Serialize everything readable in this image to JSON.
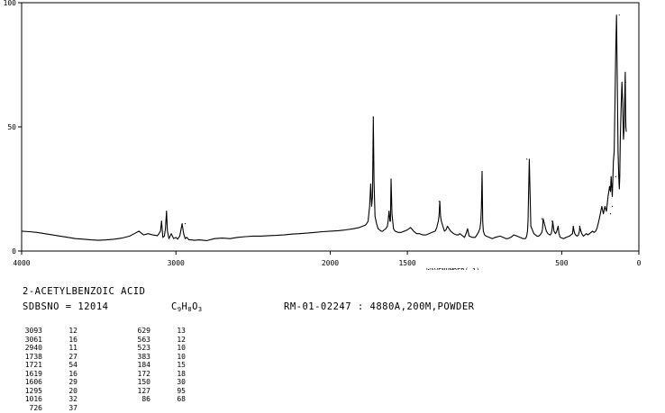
{
  "chart_data": {
    "type": "line",
    "xlabel": "WAVENUMBER(-1)",
    "ylabel": "",
    "xlim": [
      4000,
      0
    ],
    "ylim": [
      0,
      100
    ],
    "x_ticks": [
      4000,
      3000,
      2000,
      1500,
      500,
      0
    ],
    "x_tick_labels": [
      "4000",
      "3000",
      "2000",
      "1500",
      "500",
      "0"
    ],
    "y_ticks": [
      0,
      50,
      100
    ],
    "y_tick_labels": [
      "0",
      "50",
      "100"
    ],
    "grid": false,
    "series": [
      {
        "color": "#000000",
        "x": [
          4000,
          3950,
          3900,
          3850,
          3800,
          3750,
          3700,
          3650,
          3600,
          3550,
          3500,
          3450,
          3400,
          3350,
          3300,
          3270,
          3240,
          3210,
          3180,
          3150,
          3120,
          3110,
          3100,
          3093,
          3085,
          3075,
          3068,
          3061,
          3055,
          3045,
          3030,
          3015,
          3000,
          2990,
          2975,
          2960,
          2950,
          2940,
          2930,
          2915,
          2900,
          2880,
          2850,
          2800,
          2750,
          2700,
          2650,
          2600,
          2550,
          2500,
          2450,
          2400,
          2350,
          2300,
          2250,
          2200,
          2150,
          2100,
          2050,
          2000,
          1950,
          1900,
          1850,
          1810,
          1790,
          1770,
          1755,
          1745,
          1738,
          1732,
          1726,
          1721,
          1716,
          1710,
          1700,
          1690,
          1680,
          1670,
          1660,
          1650,
          1640,
          1630,
          1625,
          1619,
          1613,
          1610,
          1606,
          1600,
          1590,
          1580,
          1560,
          1540,
          1520,
          1500,
          1480,
          1460,
          1440,
          1420,
          1400,
          1380,
          1360,
          1340,
          1320,
          1310,
          1300,
          1295,
          1290,
          1285,
          1280,
          1270,
          1260,
          1250,
          1240,
          1220,
          1200,
          1180,
          1170,
          1160,
          1140,
          1130,
          1120,
          1110,
          1100,
          1080,
          1060,
          1040,
          1030,
          1024,
          1020,
          1016,
          1012,
          1008,
          1000,
          990,
          970,
          950,
          930,
          900,
          880,
          860,
          850,
          830,
          810,
          790,
          770,
          750,
          735,
          730,
          726,
          722,
          718,
          710,
          700,
          680,
          660,
          650,
          640,
          635,
          629,
          624,
          620,
          600,
          590,
          575,
          568,
          563,
          558,
          550,
          540,
          532,
          523,
          518,
          510,
          490,
          470,
          450,
          440,
          430,
          425,
          420,
          415,
          410,
          400,
          392,
          385,
          383,
          380,
          370,
          360,
          350,
          340,
          330,
          320,
          300,
          290,
          280,
          270,
          260,
          250,
          240,
          230,
          220,
          210,
          200,
          190,
          184,
          180,
          172,
          168,
          165,
          160,
          155,
          150,
          145,
          140,
          135,
          130,
          127,
          124,
          120,
          115,
          110,
          105,
          100,
          95,
          92,
          88,
          86,
          84,
          82
        ],
        "y": [
          8,
          7.8,
          7.5,
          7,
          6.5,
          6,
          5.5,
          5,
          4.8,
          4.5,
          4.3,
          4.5,
          4.8,
          5.2,
          6,
          7,
          8,
          6.5,
          7,
          6.5,
          6.2,
          7,
          8,
          12,
          5.5,
          6,
          9,
          16,
          8,
          5,
          7,
          5,
          5.5,
          4.8,
          6,
          11,
          7,
          5,
          5.5,
          4.5,
          4.5,
          4.3,
          4.5,
          4.2,
          5,
          5.2,
          5,
          5.5,
          5.8,
          6,
          6,
          6.2,
          6.3,
          6.5,
          6.8,
          7,
          7.2,
          7.5,
          7.8,
          8,
          8.2,
          8.5,
          9,
          9.5,
          10,
          10.5,
          12,
          18,
          27,
          18,
          22,
          54,
          28,
          14,
          11,
          9,
          8.5,
          8,
          8,
          8.5,
          9,
          10,
          12,
          16,
          12,
          12,
          29,
          15,
          9,
          8,
          7.5,
          7.5,
          8,
          8.5,
          9.5,
          8,
          7,
          7,
          6.5,
          6.5,
          7,
          7.5,
          8,
          9.5,
          12,
          14,
          20,
          14,
          12,
          10,
          8,
          8.5,
          10,
          8,
          7,
          6.5,
          6.5,
          7,
          6,
          5.5,
          7,
          9,
          6,
          5.5,
          5.5,
          7.5,
          9,
          12,
          18,
          32,
          12,
          8,
          6.5,
          6,
          5.5,
          5,
          5.5,
          6,
          5.5,
          5,
          5,
          5.5,
          6.5,
          6,
          5.5,
          5,
          5,
          5.5,
          6.5,
          8,
          12,
          37,
          10,
          7,
          6,
          6,
          6.5,
          7,
          7.5,
          9,
          13,
          8,
          7,
          6.5,
          7,
          8.5,
          12,
          8,
          7,
          8,
          10,
          7,
          5.5,
          5,
          5.5,
          6,
          6.5,
          7,
          10,
          8,
          7,
          6.5,
          6,
          6.5,
          8,
          10,
          9,
          7,
          6,
          6.5,
          7,
          6.5,
          7,
          8,
          7.5,
          8,
          9.5,
          12,
          15,
          18,
          15,
          18,
          16,
          22,
          26,
          24,
          30,
          22,
          30,
          36,
          40,
          60,
          80,
          95,
          70,
          40,
          30,
          25,
          30,
          45,
          58,
          68,
          60,
          45,
          50,
          60,
          72,
          55,
          50,
          48
        ],
        "cutoff_pct": 4,
        "peaks": [
          {
            "x": 3093,
            "y": 12
          },
          {
            "x": 3061,
            "y": 16
          },
          {
            "x": 2940,
            "y": 11
          },
          {
            "x": 1738,
            "y": 27
          },
          {
            "x": 1721,
            "y": 54
          },
          {
            "x": 1619,
            "y": 16
          },
          {
            "x": 1606,
            "y": 29
          },
          {
            "x": 1295,
            "y": 20
          },
          {
            "x": 1016,
            "y": 32
          },
          {
            "x": 726,
            "y": 37
          },
          {
            "x": 629,
            "y": 13
          },
          {
            "x": 563,
            "y": 12
          },
          {
            "x": 523,
            "y": 10
          },
          {
            "x": 383,
            "y": 10
          },
          {
            "x": 184,
            "y": 15
          },
          {
            "x": 172,
            "y": 18
          },
          {
            "x": 150,
            "y": 30
          },
          {
            "x": 127,
            "y": 95
          },
          {
            "x": 86,
            "y": 68
          }
        ]
      }
    ]
  },
  "compound": {
    "name": "2-ACETYLBENZOIC ACID",
    "sdbs_label": "SDBSNO = 12014",
    "formula_c": "C",
    "formula_c_n": "9",
    "formula_h": "H",
    "formula_h_n": "8",
    "formula_o": "O",
    "formula_o_n": "3",
    "method": "RM-01-02247 : 4880A,200M,POWDER"
  },
  "peak_table": {
    "col1": [
      [
        "3093",
        "12"
      ],
      [
        "3061",
        "16"
      ],
      [
        "2940",
        "11"
      ],
      [
        "1738",
        "27"
      ],
      [
        "1721",
        "54"
      ],
      [
        "1619",
        "16"
      ],
      [
        "1606",
        "29"
      ],
      [
        "1295",
        "20"
      ],
      [
        "1016",
        "32"
      ],
      [
        "726",
        "37"
      ]
    ],
    "col2": [
      [
        "629",
        "13"
      ],
      [
        "563",
        "12"
      ],
      [
        "523",
        "10"
      ],
      [
        "383",
        "10"
      ],
      [
        "184",
        "15"
      ],
      [
        "172",
        "18"
      ],
      [
        "150",
        "30"
      ],
      [
        "127",
        "95"
      ],
      [
        "86",
        "68"
      ]
    ]
  }
}
